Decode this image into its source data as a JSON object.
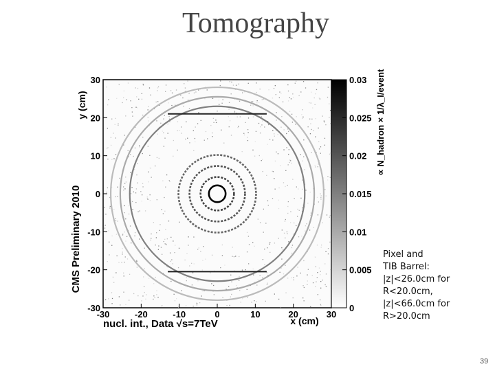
{
  "slide": {
    "title": "Tomography",
    "page_number": "39",
    "note_lines": [
      "Pixel and",
      "TIB Barrel:",
      "|z|<26.0cm for",
      "R<20.0cm,",
      "|z|<66.0cm for",
      "R>20.0cm"
    ]
  },
  "chart_data": {
    "type": "heatmap",
    "xlabel": "x (cm)",
    "ylabel": "y (cm)",
    "zlabel": "∝ N_hadron × 1/λ_I/event",
    "xlim": [
      -30,
      30
    ],
    "ylim": [
      -30,
      30
    ],
    "zlim": [
      0,
      0.03
    ],
    "x_ticks": [
      "-30",
      "-20",
      "-10",
      "0",
      "10",
      "20",
      "30"
    ],
    "y_ticks": [
      "30",
      "20",
      "10",
      "0",
      "-10",
      "-20",
      "-30"
    ],
    "z_ticks": [
      "0.03",
      "0.025",
      "0.02",
      "0.015",
      "0.01",
      "0.005",
      "0"
    ],
    "annotation_left": "CMS Preliminary 2010",
    "annotation_bottom": "nucl. int., Data √s=7TeV",
    "rings_cm": [
      {
        "r": 2.2,
        "intensity": 0.03
      },
      {
        "r": 4.4,
        "intensity": 0.022
      },
      {
        "r": 7.3,
        "intensity": 0.02
      },
      {
        "r": 10.2,
        "intensity": 0.018
      },
      {
        "r": 23.0,
        "intensity": 0.015
      },
      {
        "r": 25.5,
        "intensity": 0.01
      },
      {
        "r": 28.0,
        "intensity": 0.008
      }
    ]
  }
}
